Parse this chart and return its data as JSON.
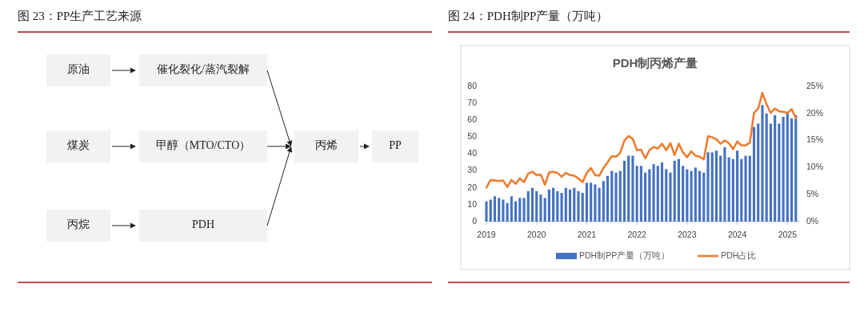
{
  "chart_data": [
    {
      "type": "other",
      "title": "图 23：PP生产工艺来源",
      "annotations": [
        "原油",
        "催化裂化/蒸汽裂解",
        "煤炭",
        "甲醇（MTO/CTO）",
        "丙烷",
        "PDH",
        "丙烯",
        "PP"
      ]
    },
    {
      "type": "bar",
      "title": "图 24：PDH制PP产量（万吨）",
      "subtitle": "PDH制丙烯产量",
      "x": [
        "2019-01",
        "2019-02",
        "2019-03",
        "2019-04",
        "2019-05",
        "2019-06",
        "2019-07",
        "2019-08",
        "2019-09",
        "2019-10",
        "2019-11",
        "2019-12",
        "2020-01",
        "2020-02",
        "2020-03",
        "2020-04",
        "2020-05",
        "2020-06",
        "2020-07",
        "2020-08",
        "2020-09",
        "2020-10",
        "2020-11",
        "2020-12",
        "2021-01",
        "2021-02",
        "2021-03",
        "2021-04",
        "2021-05",
        "2021-06",
        "2021-07",
        "2021-08",
        "2021-09",
        "2021-10",
        "2021-11",
        "2021-12",
        "2022-01",
        "2022-02",
        "2022-03",
        "2022-04",
        "2022-05",
        "2022-06",
        "2022-07",
        "2022-08",
        "2022-09",
        "2022-10",
        "2022-11",
        "2022-12",
        "2023-01",
        "2023-02",
        "2023-03",
        "2023-04",
        "2023-05",
        "2023-06",
        "2023-07",
        "2023-08",
        "2023-09",
        "2023-10",
        "2023-11",
        "2023-12",
        "2024-01",
        "2024-02",
        "2024-03",
        "2024-04",
        "2024-05",
        "2024-06",
        "2024-07",
        "2024-08",
        "2024-09",
        "2024-10",
        "2024-11",
        "2024-12",
        "2025-01",
        "2025-02",
        "2025-03"
      ],
      "series": [
        {
          "name": "PDH制PP产量（万吨）",
          "color": "#4472c4",
          "values": [
            12,
            13,
            15,
            14,
            13,
            11,
            15,
            12,
            14,
            14,
            18,
            20,
            18,
            16,
            14,
            19,
            20,
            18,
            17,
            20,
            19,
            20,
            18,
            17,
            23,
            23,
            22,
            20,
            24,
            27,
            30,
            29,
            30,
            36,
            39,
            39,
            33,
            33,
            29,
            31,
            34,
            33,
            35,
            31,
            29,
            36,
            37,
            33,
            31,
            30,
            32,
            30,
            29,
            41,
            41,
            42,
            39,
            44,
            38,
            37,
            42,
            37,
            39,
            39,
            56,
            58,
            69,
            64,
            58,
            63,
            58,
            62,
            64,
            61,
            63
          ]
        },
        {
          "name": "PDH占比",
          "type": "line",
          "axis": "y2",
          "color": "#ed7d31",
          "values": [
            6.3,
            7.7,
            7.6,
            7.5,
            7.6,
            6.4,
            7.7,
            7.0,
            8.0,
            7.3,
            8.9,
            9.2,
            8.6,
            8.7,
            6.8,
            9.1,
            9.2,
            9.0,
            8.3,
            9.0,
            8.6,
            8.5,
            8.0,
            7.3,
            9.0,
            9.9,
            8.6,
            8.5,
            9.9,
            11.0,
            12.1,
            12.0,
            12.7,
            15.0,
            15.8,
            15.3,
            13.2,
            13.3,
            11.7,
            13.2,
            13.8,
            13.5,
            14.4,
            13.2,
            14.5,
            12.3,
            14.4,
            12.8,
            11.9,
            13.0,
            12.2,
            12.0,
            11.5,
            15.8,
            15.6,
            15.2,
            14.4,
            15.0,
            14.5,
            13.4,
            14.8,
            14.1,
            14.1,
            14.6,
            20.1,
            20.9,
            23.8,
            21.7,
            20.1,
            20.9,
            20.4,
            20.3,
            20.1,
            20.8,
            19.1
          ]
        }
      ],
      "xlim": [
        "2019-01",
        "2025-04"
      ],
      "xticks": [
        "2019",
        "2020",
        "2021",
        "2022",
        "2023",
        "2024",
        "2025"
      ],
      "ylim": [
        0,
        80
      ],
      "yticks": [
        0,
        10,
        20,
        30,
        40,
        50,
        60,
        70,
        80
      ],
      "y2lim": [
        0,
        25
      ],
      "y2ticks": [
        {
          "value": 0,
          "label": "0%"
        },
        {
          "value": 5,
          "label": "5%"
        },
        {
          "value": 10,
          "label": "10%"
        },
        {
          "value": 15,
          "label": "15%"
        },
        {
          "value": 20,
          "label": "20%"
        },
        {
          "value": 25,
          "label": "25%"
        }
      ],
      "legend": "bottom"
    }
  ]
}
